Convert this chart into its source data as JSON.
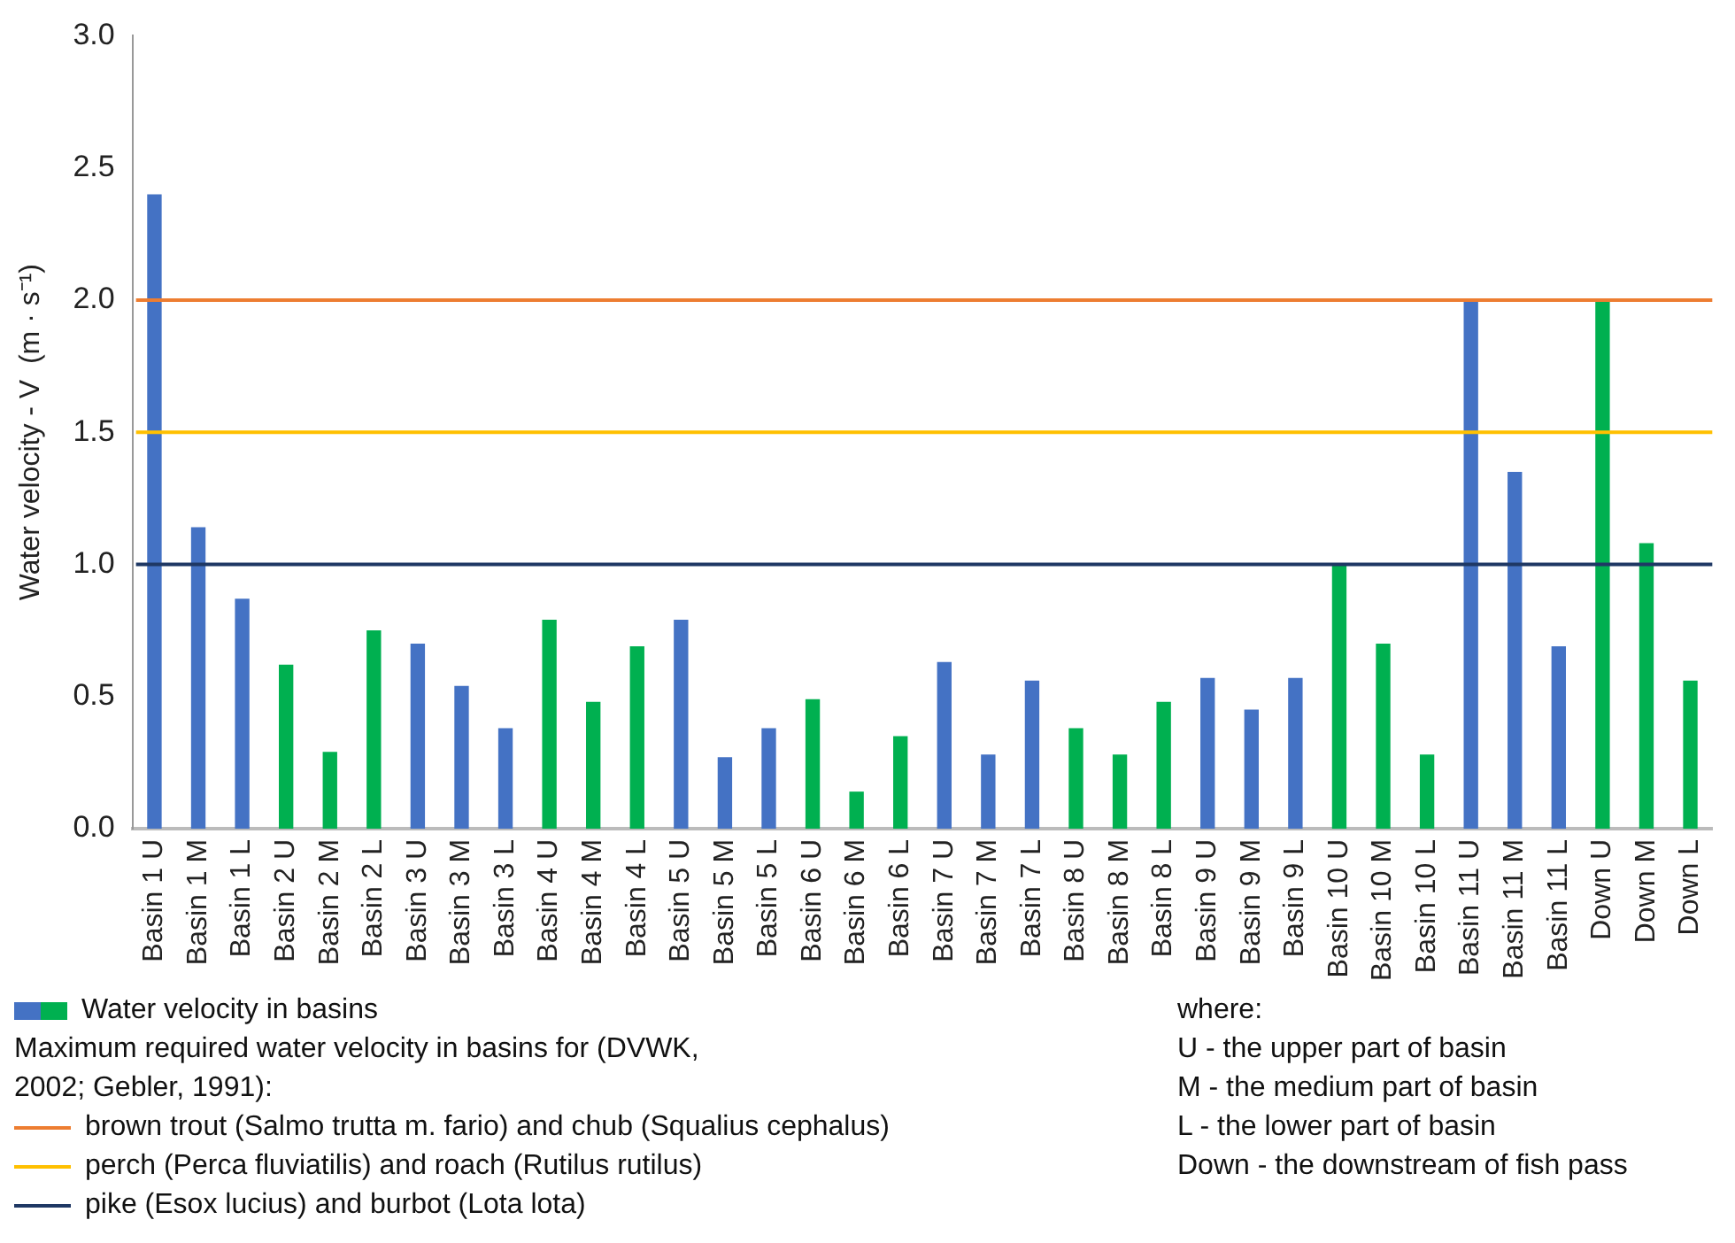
{
  "chart_data": {
    "type": "bar",
    "ylabel": "Water velocity - V  (m · s⁻¹)",
    "categories": [
      "Basin 1 U",
      "Basin 1 M",
      "Basin 1 L",
      "Basin 2 U",
      "Basin 2 M",
      "Basin 2 L",
      "Basin 3 U",
      "Basin 3 M",
      "Basin 3 L",
      "Basin 4 U",
      "Basin 4 M",
      "Basin 4 L",
      "Basin 5 U",
      "Basin 5 M",
      "Basin 5 L",
      "Basin 6 U",
      "Basin 6 M",
      "Basin 6 L",
      "Basin 7 U",
      "Basin 7 M",
      "Basin 7 L",
      "Basin 8 U",
      "Basin 8 M",
      "Basin 8 L",
      "Basin 9 U",
      "Basin 9 M",
      "Basin 9 L",
      "Basin 10 U",
      "Basin 10 M",
      "Basin 10 L",
      "Basin 11 U",
      "Basin 11 M",
      "Basin 11 L",
      "Down U",
      "Down M",
      "Down L"
    ],
    "series": [
      {
        "name": "Water velocity in basins",
        "values": [
          2.4,
          1.14,
          0.87,
          0.62,
          0.29,
          0.75,
          0.7,
          0.54,
          0.38,
          0.79,
          0.48,
          0.69,
          0.79,
          0.27,
          0.38,
          0.49,
          0.14,
          0.35,
          0.63,
          0.28,
          0.56,
          0.38,
          0.28,
          0.48,
          0.57,
          0.45,
          0.57,
          1.0,
          0.7,
          0.28,
          2.0,
          1.35,
          0.69,
          2.0,
          1.08,
          0.56
        ],
        "colors": [
          "#4472c4",
          "#4472c4",
          "#4472c4",
          "#00b050",
          "#00b050",
          "#00b050",
          "#4472c4",
          "#4472c4",
          "#4472c4",
          "#00b050",
          "#00b050",
          "#00b050",
          "#4472c4",
          "#4472c4",
          "#4472c4",
          "#00b050",
          "#00b050",
          "#00b050",
          "#4472c4",
          "#4472c4",
          "#4472c4",
          "#00b050",
          "#00b050",
          "#00b050",
          "#4472c4",
          "#4472c4",
          "#4472c4",
          "#00b050",
          "#00b050",
          "#00b050",
          "#4472c4",
          "#4472c4",
          "#4472c4",
          "#00b050",
          "#00b050",
          "#00b050"
        ]
      }
    ],
    "ylim": [
      0,
      3
    ],
    "yticks": [
      {
        "value": 0,
        "label": "0.0"
      },
      {
        "value": 0.5,
        "label": "0.5"
      },
      {
        "value": 1,
        "label": "1.0"
      },
      {
        "value": 1.5,
        "label": "1.5"
      },
      {
        "value": 2,
        "label": "2.0"
      },
      {
        "value": 2.5,
        "label": "2.5"
      },
      {
        "value": 3,
        "label": "3.0"
      }
    ],
    "grid": false,
    "legend": "bottom left",
    "legend_title": "Maximum required water velocity in basins for (DVWK, 2002; Gebler, 1991):",
    "ref_lines": [
      {
        "axis": "y",
        "value": 2,
        "label": "brown trout (Salmo trutta m. fario) and chub (Squalius cephalus)",
        "color": "#ed7d31"
      },
      {
        "axis": "y",
        "value": 1.5,
        "label": "perch (Perca fluviatilis) and roach (Rutilus rutilus)",
        "color": "#ffc000"
      },
      {
        "axis": "y",
        "value": 1,
        "label": "pike (Esox lucius) and burbot (Lota lota)",
        "color": "#1f3864"
      }
    ],
    "annotations": [
      "where:",
      "U - the upper part of basin",
      "M - the medium part of basin",
      "L - the lower part of basin",
      "Down - the downstream of fish pass"
    ]
  }
}
